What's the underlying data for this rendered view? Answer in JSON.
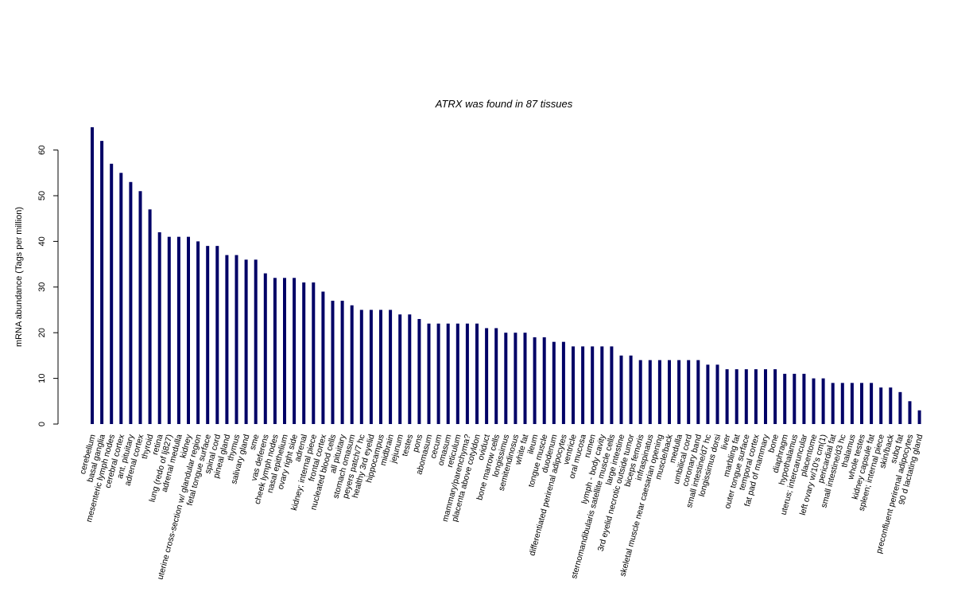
{
  "chart_data": {
    "type": "bar",
    "title": "ATRX  was found in  87  tissues",
    "xlabel": "",
    "ylabel": "mRNA abundance (Tags per million)",
    "ylim": [
      0,
      60
    ],
    "yticks": [
      0,
      10,
      20,
      30,
      40,
      50,
      60
    ],
    "bar_color": "#000066",
    "grid": false,
    "categories": [
      "cerebellum",
      "basal ganglia",
      "mesenteric lymph nodes",
      "cerebral cortex",
      "ant. pituitary",
      "adrenal cortex",
      "thyroid",
      "retina",
      "lung (redo of lj827)",
      "adrenal medulla",
      "kidney",
      "uterine cross-section w/ glandular region",
      "fetal tongue surface",
      "spinal cord",
      "pineal gland",
      "thymus",
      "salivary gland",
      "sme",
      "vas deferens",
      "cheek lymph nodes",
      "nasal epithelium",
      "ovary right side",
      "adrenal",
      "kidney; internal piece",
      "frontal cortex",
      "nucleated blood cells",
      "all pituitary",
      "stomach omasum",
      "peyers patch/7 hc",
      "healthy 3rd eyelid",
      "hippocampus",
      "midbrain",
      "jejunum",
      "testes",
      "pons",
      "abomasum",
      "cecum",
      "omasum",
      "reticulum",
      "mammary/parenchyma?",
      "placenta above cotyldon",
      "oviduct",
      "bone marrow cells",
      "longissimus",
      "semitendinosus",
      "white fat",
      "ileum",
      "tongue muscle",
      "duodenum",
      "differentiated perirenal adipocytes",
      "ventricle",
      "oral mucosa",
      "rumen",
      "lymph - body cavity",
      "sternomandibularis satellite muscle cells",
      "large intestine",
      "3rd eyelid necrotic outside tumor",
      "biceps femoris",
      "infraspinatus",
      "skeletal muscle near caesarian opening",
      "muscle/back",
      "medulla",
      "umbilical cord",
      "coronary band",
      "small intestine/d7 hc",
      "longissimus dorsi",
      "liver",
      "marbling fat",
      "outer tongue surface",
      "temporal cortex",
      "fat pad of mammary",
      "bone",
      "diaphragm",
      "hypothalamus",
      "uterus; intercaruncular",
      "placentome",
      "left ovary w/10's cm(1)",
      "pericardial fat",
      "small intestine/d3 hc",
      "thalamus",
      "whole testes",
      "kidney capsule fat",
      "spleen; internal piece",
      "skin/back",
      "subq fat",
      "preconfluent perirenal adipocytes",
      "90 d lactating gland"
    ],
    "values": [
      65,
      62,
      57,
      55,
      53,
      51,
      47,
      42,
      41,
      41,
      41,
      40,
      39,
      39,
      37,
      37,
      36,
      36,
      33,
      32,
      32,
      32,
      31,
      31,
      29,
      27,
      27,
      26,
      25,
      25,
      25,
      25,
      24,
      24,
      23,
      22,
      22,
      22,
      22,
      22,
      22,
      21,
      21,
      20,
      20,
      20,
      19,
      19,
      18,
      18,
      17,
      17,
      17,
      17,
      17,
      15,
      15,
      14,
      14,
      14,
      14,
      14,
      14,
      14,
      13,
      13,
      12,
      12,
      12,
      12,
      12,
      12,
      11,
      11,
      11,
      10,
      10,
      9,
      9,
      9,
      9,
      9,
      8,
      8,
      7,
      5,
      3
    ]
  }
}
